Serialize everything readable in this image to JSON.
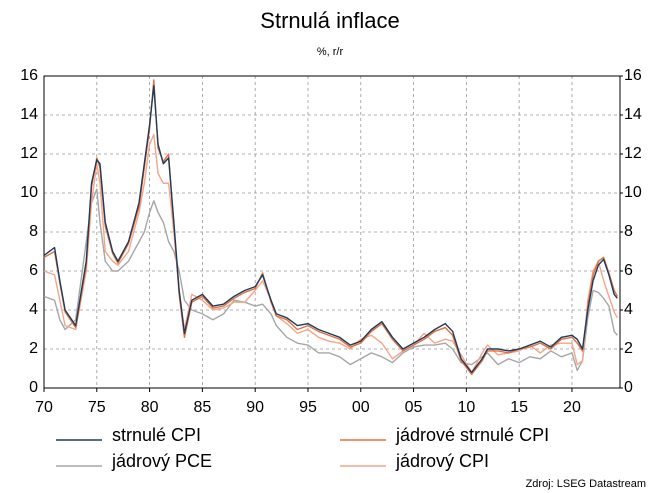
{
  "chart_data": {
    "type": "line",
    "title": "Strnulá inflace",
    "subtitle": "%, r/r",
    "source": "Zdroj: LSEG Datastream",
    "x": [
      1970,
      1971,
      1971.5,
      1972,
      1973,
      1974,
      1974.5,
      1975,
      1975.3,
      1975.8,
      1976.5,
      1977,
      1978,
      1979,
      1979.5,
      1980,
      1980.4,
      1980.8,
      1981.3,
      1981.8,
      1982.3,
      1982.8,
      1983.3,
      1984,
      1985,
      1986,
      1987,
      1988,
      1989,
      1990,
      1990.7,
      1991.5,
      1992,
      1993,
      1994,
      1995,
      1996,
      1997,
      1998,
      1999,
      2000,
      2001,
      2002,
      2003,
      2004,
      2005,
      2006,
      2007,
      2008,
      2008.7,
      2009.5,
      2010.5,
      2011.5,
      2012,
      2013,
      2014,
      2015,
      2016,
      2017,
      2018,
      2019,
      2020,
      2020.5,
      2021,
      2021.5,
      2022,
      2022.5,
      2023,
      2023.5,
      2024,
      2024.3
    ],
    "series": [
      {
        "name": "strnulé CPI",
        "color": "#1f3b5c",
        "values": [
          6.8,
          7.2,
          5.5,
          4.0,
          3.2,
          6.5,
          10.5,
          11.7,
          11.5,
          8.5,
          7.0,
          6.5,
          7.5,
          9.5,
          11.5,
          13.5,
          15.5,
          12.5,
          11.5,
          11.8,
          8.5,
          5.0,
          2.8,
          4.5,
          4.8,
          4.2,
          4.3,
          4.7,
          5.0,
          5.2,
          5.8,
          4.5,
          3.8,
          3.6,
          3.2,
          3.3,
          3.0,
          2.8,
          2.6,
          2.2,
          2.4,
          3.0,
          3.4,
          2.6,
          2.0,
          2.3,
          2.6,
          3.0,
          3.3,
          2.9,
          1.5,
          0.8,
          1.5,
          2.0,
          2.0,
          1.9,
          2.0,
          2.2,
          2.4,
          2.1,
          2.6,
          2.7,
          2.5,
          2.0,
          4.0,
          5.5,
          6.3,
          6.6,
          5.8,
          4.8,
          4.6
        ]
      },
      {
        "name": "jádrové strnulé CPI",
        "color": "#e0703f",
        "values": [
          6.7,
          7.0,
          5.4,
          3.9,
          3.1,
          6.3,
          10.3,
          11.8,
          11.3,
          8.3,
          6.9,
          6.4,
          7.4,
          9.3,
          11.3,
          13.3,
          15.8,
          12.3,
          11.6,
          12.0,
          8.3,
          4.8,
          2.6,
          4.4,
          4.7,
          4.1,
          4.2,
          4.6,
          4.9,
          5.1,
          5.9,
          4.4,
          3.7,
          3.5,
          3.0,
          3.2,
          2.9,
          2.7,
          2.5,
          2.1,
          2.3,
          2.9,
          3.3,
          2.5,
          1.9,
          2.2,
          2.5,
          2.9,
          3.1,
          2.7,
          1.4,
          0.7,
          1.4,
          1.9,
          1.9,
          1.8,
          2.0,
          2.1,
          2.3,
          2.0,
          2.5,
          2.6,
          2.3,
          1.9,
          4.2,
          5.8,
          6.5,
          6.7,
          5.9,
          5.0,
          4.7
        ]
      },
      {
        "name": "jádrový PCE",
        "color": "#a6a6a6",
        "values": [
          4.7,
          4.5,
          3.5,
          3.0,
          3.5,
          7.5,
          9.5,
          10.2,
          8.5,
          6.5,
          6.0,
          6.0,
          6.5,
          7.5,
          8.0,
          9.0,
          9.6,
          9.0,
          8.5,
          7.5,
          7.0,
          6.0,
          4.5,
          4.0,
          3.8,
          3.5,
          3.8,
          4.5,
          4.4,
          4.2,
          4.3,
          3.8,
          3.2,
          2.6,
          2.3,
          2.2,
          1.8,
          1.8,
          1.6,
          1.2,
          1.5,
          1.8,
          1.6,
          1.3,
          1.8,
          2.1,
          2.2,
          2.2,
          2.3,
          2.0,
          1.3,
          1.2,
          1.6,
          1.8,
          1.2,
          1.5,
          1.3,
          1.6,
          1.5,
          1.9,
          1.6,
          1.8,
          0.9,
          1.4,
          3.6,
          5.0,
          4.9,
          4.6,
          4.2,
          2.9,
          2.7
        ]
      },
      {
        "name": "jádrový CPI",
        "color": "#f4a58a",
        "values": [
          6.0,
          5.8,
          4.5,
          3.2,
          3.0,
          6.0,
          9.5,
          11.5,
          10.5,
          7.0,
          6.5,
          6.3,
          7.0,
          9.0,
          10.5,
          12.5,
          13.0,
          11.0,
          10.5,
          10.5,
          8.0,
          5.0,
          3.0,
          4.8,
          4.5,
          4.0,
          4.1,
          4.4,
          4.4,
          5.0,
          5.5,
          4.5,
          3.7,
          3.3,
          2.8,
          3.0,
          2.6,
          2.4,
          2.3,
          2.0,
          2.5,
          2.7,
          2.3,
          1.5,
          1.9,
          2.2,
          2.8,
          2.3,
          2.5,
          2.4,
          1.7,
          0.8,
          1.8,
          2.2,
          1.7,
          1.8,
          1.9,
          2.2,
          1.8,
          2.2,
          2.3,
          2.3,
          1.2,
          1.4,
          4.5,
          6.0,
          6.5,
          5.5,
          4.7,
          3.9,
          3.6
        ]
      }
    ],
    "xlim": [
      1970,
      2024.55
    ],
    "xticks": [
      {
        "value": 1970,
        "label": "70"
      },
      {
        "value": 1975,
        "label": "75"
      },
      {
        "value": 1980,
        "label": "80"
      },
      {
        "value": 1985,
        "label": "85"
      },
      {
        "value": 1990,
        "label": "90"
      },
      {
        "value": 1995,
        "label": "95"
      },
      {
        "value": 2000,
        "label": "00"
      },
      {
        "value": 2005,
        "label": "05"
      },
      {
        "value": 2010,
        "label": "10"
      },
      {
        "value": 2015,
        "label": "15"
      },
      {
        "value": 2020,
        "label": "20"
      }
    ],
    "ylim": [
      0,
      16
    ],
    "yticks": [
      0,
      2,
      4,
      6,
      8,
      10,
      12,
      14,
      16
    ],
    "y2lim": [
      0,
      16
    ],
    "y2ticks": [
      0,
      2,
      4,
      6,
      8,
      10,
      12,
      14,
      16
    ],
    "grid": true
  }
}
